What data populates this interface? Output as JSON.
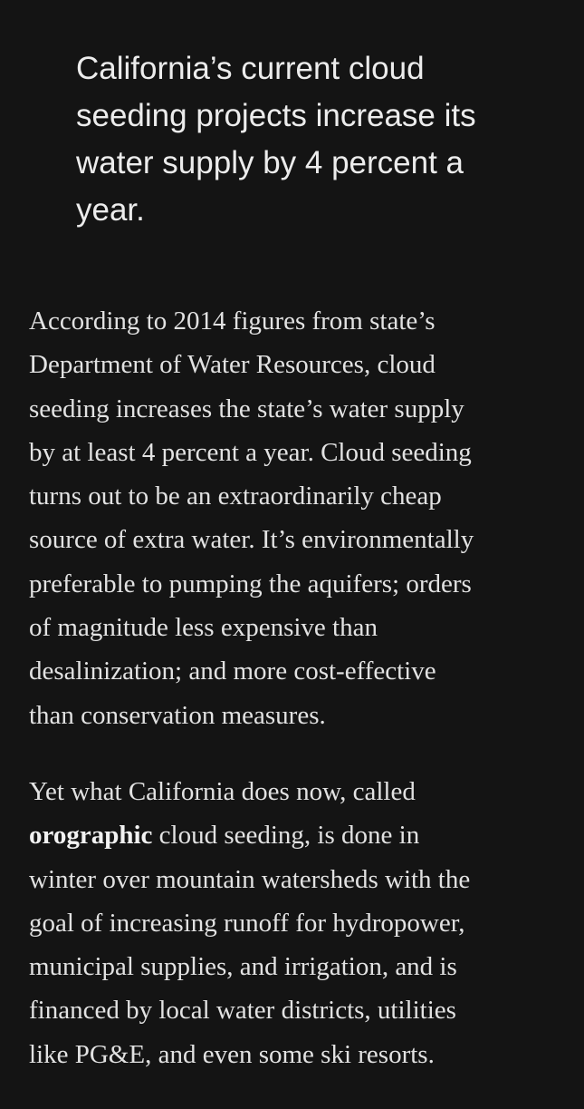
{
  "pull_quote": {
    "lines": [
      "California’s current cloud",
      "seeding projects increase its",
      "water supply by 4 percent a",
      "year."
    ]
  },
  "paragraphs": [
    {
      "lines": [
        "According to 2014 figures from state’s",
        "Department of Water Resources, cloud",
        "seeding increases the state’s water supply",
        "by at least 4 percent a year. Cloud seeding",
        "turns out to be an extraordinarily cheap",
        "source of extra water. It’s environmentally",
        "preferable to pumping the aquifers; orders",
        "of magnitude less expensive than",
        "desalinization; and more cost-effective",
        "than conservation measures."
      ]
    },
    {
      "lines": [
        "Yet what California does now, called",
        [
          "orographic",
          "cloud seeding, is done in"
        ],
        "winter over mountain watersheds with the",
        "goal of increasing runoff for hydropower,",
        "municipal supplies, and irrigation, and is",
        "financed by local water districts, utilities",
        "like PG&E, and even some ski resorts."
      ]
    }
  ]
}
